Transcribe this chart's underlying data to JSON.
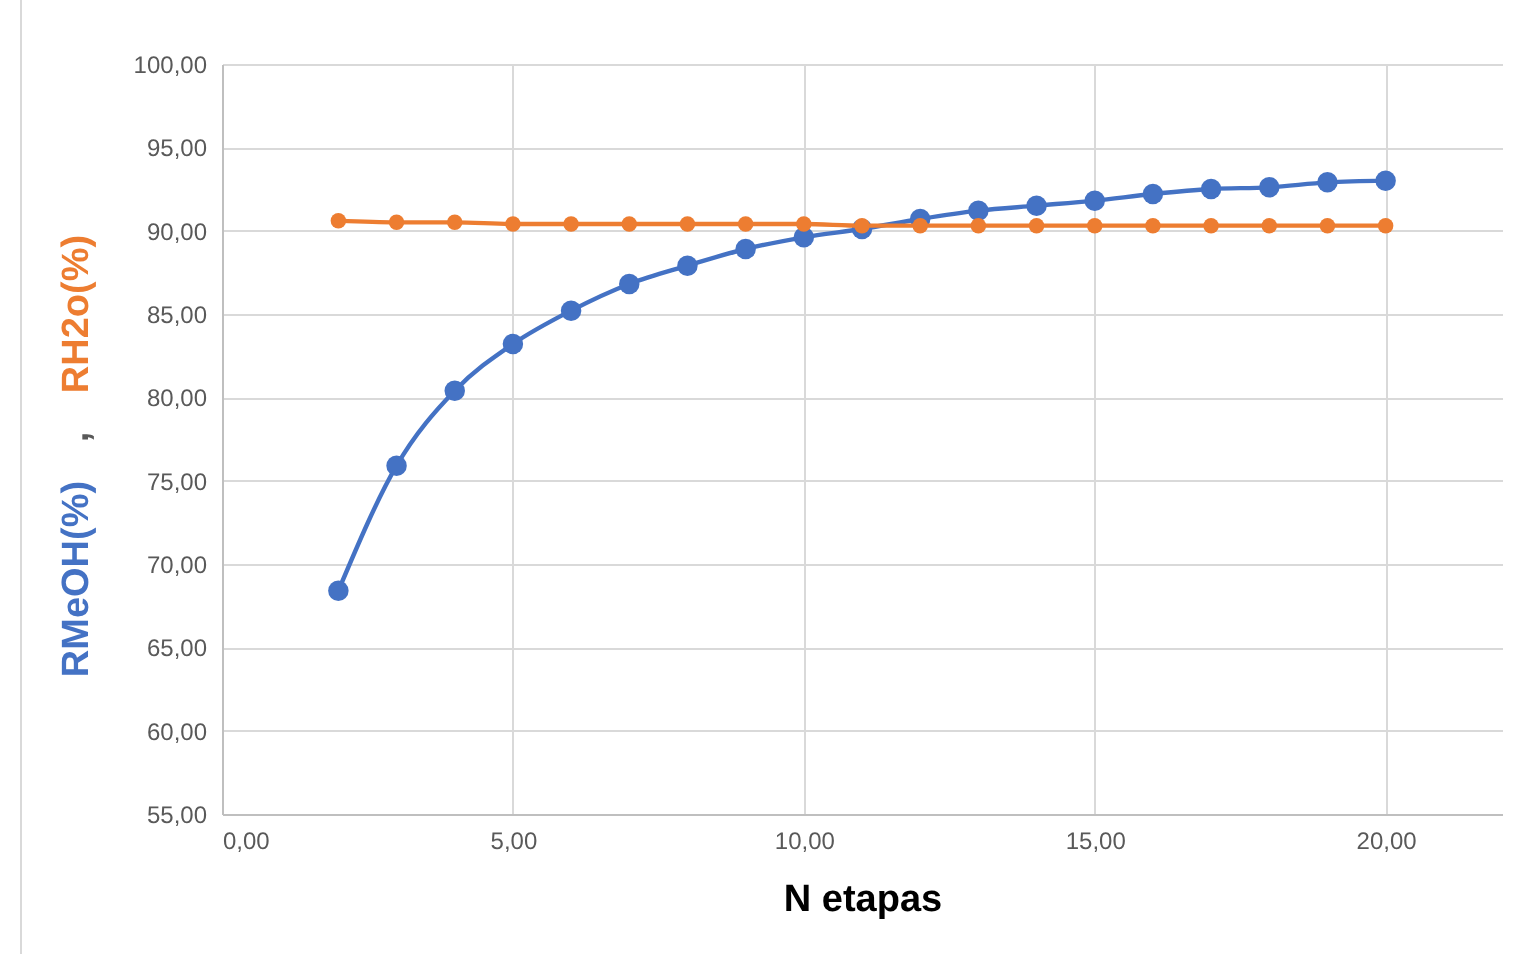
{
  "chart_data": {
    "type": "line",
    "xlabel": "N etapas",
    "ylabel": "RMeOH(%) , RH2o(%)",
    "x": [
      2,
      3,
      4,
      5,
      6,
      7,
      8,
      9,
      10,
      11,
      12,
      13,
      14,
      15,
      16,
      17,
      18,
      19,
      20
    ],
    "series": [
      {
        "color": "#4472c4",
        "values": [
          68.4,
          75.9,
          80.4,
          83.2,
          85.2,
          86.8,
          87.9,
          88.9,
          89.6,
          90.1,
          90.7,
          91.2,
          91.5,
          91.8,
          92.2,
          92.5,
          92.6,
          92.9,
          93.0
        ]
      },
      {
        "color": "#ed7d31",
        "values": [
          90.6,
          90.5,
          90.5,
          90.4,
          90.4,
          90.4,
          90.4,
          90.4,
          90.4,
          90.3,
          90.3,
          90.3,
          90.3,
          90.3,
          90.3,
          90.3,
          90.3,
          90.3,
          90.3
        ]
      }
    ],
    "xlim": [
      0,
      22
    ],
    "ylim": [
      55,
      100
    ],
    "xticks": [
      {
        "value": 0,
        "label": "0,00"
      },
      {
        "value": 5,
        "label": "5,00"
      },
      {
        "value": 10,
        "label": "10,00"
      },
      {
        "value": 15,
        "label": "15,00"
      },
      {
        "value": 20,
        "label": "20,00"
      }
    ],
    "yticks": [
      {
        "value": 55,
        "label": "55,00"
      },
      {
        "value": 60,
        "label": "60,00"
      },
      {
        "value": 65,
        "label": "65,00"
      },
      {
        "value": 70,
        "label": "70,00"
      },
      {
        "value": 75,
        "label": "75,00"
      },
      {
        "value": 80,
        "label": "80,00"
      },
      {
        "value": 85,
        "label": "85,00"
      },
      {
        "value": 90,
        "label": "90,00"
      },
      {
        "value": 95,
        "label": "95,00"
      },
      {
        "value": 100,
        "label": "100,00"
      }
    ],
    "grid": true,
    "marker": "circle"
  }
}
